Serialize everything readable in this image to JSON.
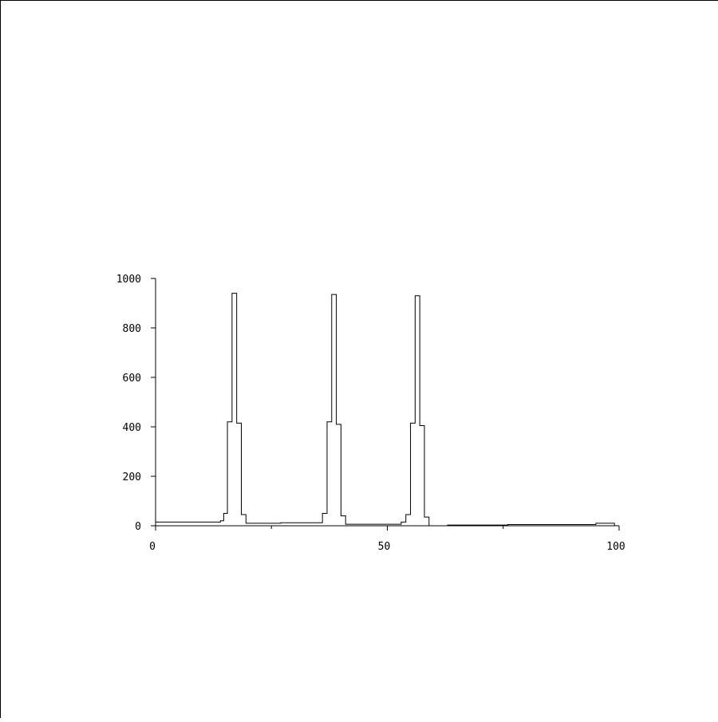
{
  "chart_data": {
    "type": "histogram-step",
    "title": "",
    "xlabel": "",
    "ylabel": "",
    "xlim": [
      0,
      100
    ],
    "ylim": [
      0,
      1000
    ],
    "xticks_major": [
      0,
      50,
      100
    ],
    "xticks_minor": [
      25,
      75
    ],
    "xtick_labels": [
      "0",
      "50",
      "100"
    ],
    "yticks": [
      0,
      200,
      400,
      600,
      800,
      1000
    ],
    "ytick_labels": [
      "0",
      "200",
      "400",
      "600",
      "800",
      "1000"
    ],
    "grid": false,
    "line_color": "#000000",
    "bins": [
      {
        "x0": 0,
        "x1": 14,
        "y": 15
      },
      {
        "x0": 14,
        "x1": 14.7,
        "y": 20
      },
      {
        "x0": 14.7,
        "x1": 15.5,
        "y": 50
      },
      {
        "x0": 15.5,
        "x1": 16.5,
        "y": 420
      },
      {
        "x0": 16.5,
        "x1": 17.5,
        "y": 940
      },
      {
        "x0": 17.5,
        "x1": 18.5,
        "y": 415
      },
      {
        "x0": 18.5,
        "x1": 19.5,
        "y": 45
      },
      {
        "x0": 19.5,
        "x1": 27,
        "y": 10
      },
      {
        "x0": 27,
        "x1": 36,
        "y": 12
      },
      {
        "x0": 36,
        "x1": 37,
        "y": 50
      },
      {
        "x0": 37,
        "x1": 38,
        "y": 420
      },
      {
        "x0": 38,
        "x1": 39,
        "y": 935
      },
      {
        "x0": 39,
        "x1": 40,
        "y": 410
      },
      {
        "x0": 40,
        "x1": 41,
        "y": 40
      },
      {
        "x0": 41,
        "x1": 53,
        "y": 6
      },
      {
        "x0": 53,
        "x1": 54,
        "y": 15
      },
      {
        "x0": 54,
        "x1": 55,
        "y": 45
      },
      {
        "x0": 55,
        "x1": 56,
        "y": 415
      },
      {
        "x0": 56,
        "x1": 57,
        "y": 930
      },
      {
        "x0": 57,
        "x1": 58,
        "y": 405
      },
      {
        "x0": 58,
        "x1": 59,
        "y": 35
      },
      {
        "x0": 59,
        "x1": 63,
        "y": 0
      },
      {
        "x0": 63,
        "x1": 76,
        "y": 3
      },
      {
        "x0": 76,
        "x1": 95,
        "y": 5
      },
      {
        "x0": 95,
        "x1": 99,
        "y": 10
      },
      {
        "x0": 99,
        "x1": 100,
        "y": 0
      }
    ]
  }
}
